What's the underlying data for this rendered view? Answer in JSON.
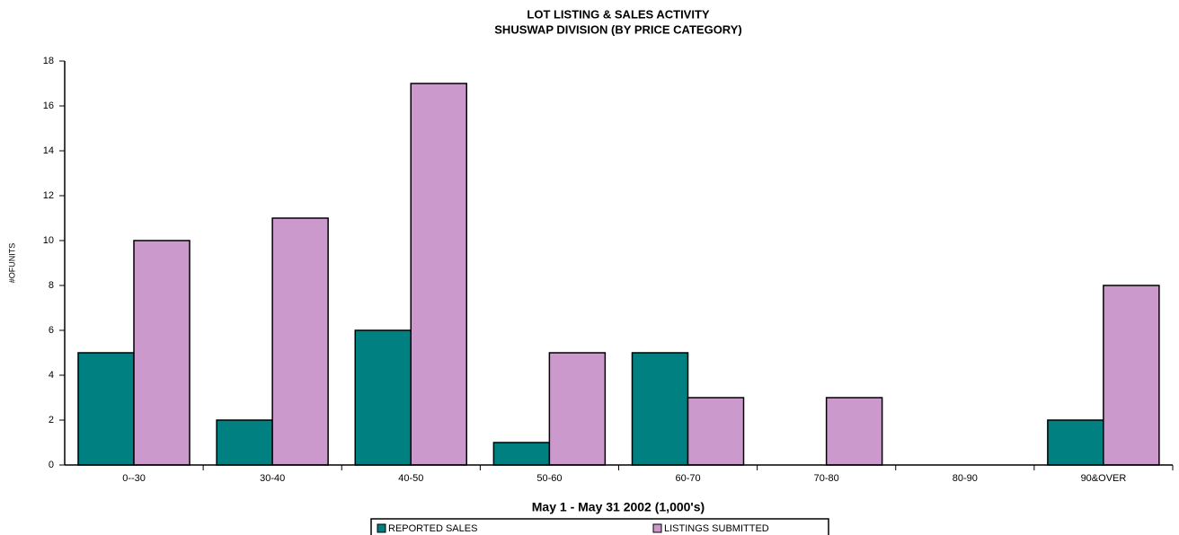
{
  "chart_data": {
    "type": "bar",
    "title": "LOT LISTING & SALES ACTIVITY",
    "subtitle": "SHUSWAP DIVISION (BY PRICE CATEGORY)",
    "y_label": "#OFUNITS",
    "x_label": "May 1 - May 31 2002 (1,000's)",
    "categories": [
      "0--30",
      "30-40",
      "40-50",
      "50-60",
      "60-70",
      "70-80",
      "80-90",
      "90&OVER"
    ],
    "series": [
      {
        "name": "REPORTED SALES",
        "color": "#008080",
        "values": [
          5,
          2,
          6,
          1,
          5,
          0,
          0,
          2
        ]
      },
      {
        "name": "LISTINGS SUBMITTED",
        "color": "#cc99cc",
        "values": [
          10,
          11,
          17,
          5,
          3,
          3,
          0,
          8
        ]
      }
    ],
    "ylim": [
      0,
      18
    ],
    "yticks": [
      0,
      2,
      4,
      6,
      8,
      10,
      12,
      14,
      16,
      18
    ],
    "legend": "bottom"
  }
}
